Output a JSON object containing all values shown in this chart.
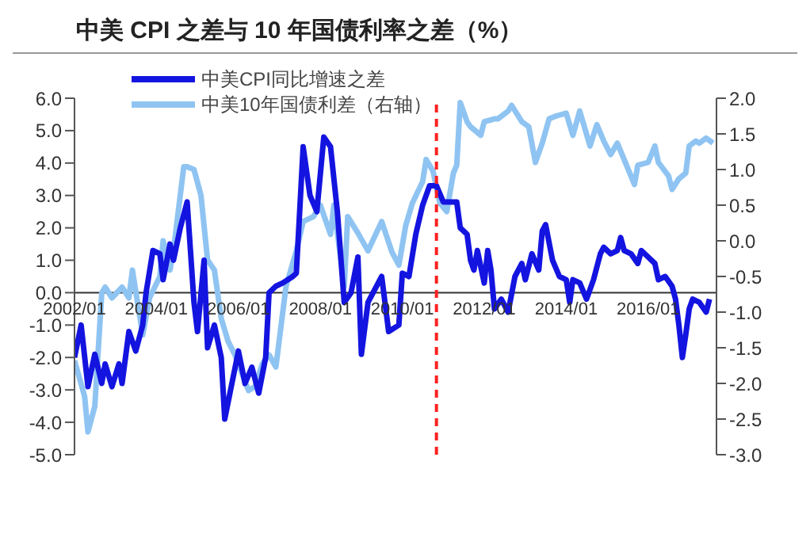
{
  "chart_data": {
    "type": "line",
    "title": "中美 CPI 之差与 10 年国债利率之差（%）",
    "legend": "top left",
    "xlim": [
      "2002-01",
      "2017-09"
    ],
    "xticks": [
      {
        "value": "2002-01",
        "label": "2002/01"
      },
      {
        "value": "2004-01",
        "label": "2004/01"
      },
      {
        "value": "2006-01",
        "label": "2006/01"
      },
      {
        "value": "2008-01",
        "label": "2008/01"
      },
      {
        "value": "2010-01",
        "label": "2010/01"
      },
      {
        "value": "2012-01",
        "label": "2012/01"
      },
      {
        "value": "2014-01",
        "label": "2014/01"
      },
      {
        "value": "2016-01",
        "label": "2016/01"
      }
    ],
    "ylim": [
      -5,
      6
    ],
    "yticks": [
      {
        "value": -5,
        "label": "-5.0"
      },
      {
        "value": -4,
        "label": "-4.0"
      },
      {
        "value": -3,
        "label": "-3.0"
      },
      {
        "value": -2,
        "label": "-2.0"
      },
      {
        "value": -1,
        "label": "-1.0"
      },
      {
        "value": 0,
        "label": "0.0"
      },
      {
        "value": 1,
        "label": "1.0"
      },
      {
        "value": 2,
        "label": "2.0"
      },
      {
        "value": 3,
        "label": "3.0"
      },
      {
        "value": 4,
        "label": "4.0"
      },
      {
        "value": 5,
        "label": "5.0"
      },
      {
        "value": 6,
        "label": "6.0"
      }
    ],
    "y2lim": [
      -3,
      2
    ],
    "y2ticks": [
      {
        "value": -3,
        "label": "-3.0"
      },
      {
        "value": -2.5,
        "label": "-2.5"
      },
      {
        "value": -2,
        "label": "-2.0"
      },
      {
        "value": -1.5,
        "label": "-1.5"
      },
      {
        "value": -1,
        "label": "-1.0"
      },
      {
        "value": -0.5,
        "label": "-0.5"
      },
      {
        "value": 0,
        "label": "0.0"
      },
      {
        "value": 0.5,
        "label": "0.5"
      },
      {
        "value": 1,
        "label": "1.0"
      },
      {
        "value": 1.5,
        "label": "1.5"
      },
      {
        "value": 2,
        "label": "2.0"
      }
    ],
    "ref_lines": [
      {
        "axis": "x",
        "value": "2010-11",
        "color": "#ff2020",
        "line_style": "dashed"
      }
    ],
    "series": [
      {
        "name": "中美CPI同比增速之差",
        "color": "#1414e0",
        "x": [
          "2002-01",
          "2002-03",
          "2002-05",
          "2002-07",
          "2002-09",
          "2002-10",
          "2002-12",
          "2003-02",
          "2003-03",
          "2003-05",
          "2003-07",
          "2003-09",
          "2003-10",
          "2003-12",
          "2004-02",
          "2004-03",
          "2004-05",
          "2004-06",
          "2004-08",
          "2004-10",
          "2004-12",
          "2005-01",
          "2005-03",
          "2005-04",
          "2005-06",
          "2005-08",
          "2005-09",
          "2006-01",
          "2006-03",
          "2006-05",
          "2006-07",
          "2006-09",
          "2006-10",
          "2006-12",
          "2007-02",
          "2007-05",
          "2007-06",
          "2007-07",
          "2007-08",
          "2007-10",
          "2007-12",
          "2008-02",
          "2008-04",
          "2008-06",
          "2008-08",
          "2008-10",
          "2008-12",
          "2009-01",
          "2009-03",
          "2009-07",
          "2009-09",
          "2009-12",
          "2010-01",
          "2010-03",
          "2010-05",
          "2010-07",
          "2010-09",
          "2010-11",
          "2011-01",
          "2011-03",
          "2011-05",
          "2011-06",
          "2011-08",
          "2011-09",
          "2011-10",
          "2011-11",
          "2012-01",
          "2012-02",
          "2012-03",
          "2012-04",
          "2012-06",
          "2012-08",
          "2012-10",
          "2012-12",
          "2013-01",
          "2013-03",
          "2013-05",
          "2013-06",
          "2013-07",
          "2013-09",
          "2013-11",
          "2014-01",
          "2014-02",
          "2014-03",
          "2014-05",
          "2014-07",
          "2014-09",
          "2014-11",
          "2014-12",
          "2015-02",
          "2015-04",
          "2015-05",
          "2015-06",
          "2015-08",
          "2015-10",
          "2015-11",
          "2016-01",
          "2016-03",
          "2016-04",
          "2016-06",
          "2016-08",
          "2016-09",
          "2016-10",
          "2016-11",
          "2016-12",
          "2017-01",
          "2017-02",
          "2017-04",
          "2017-06",
          "2017-07"
        ],
        "values": [
          -2.0,
          -1.0,
          -2.9,
          -1.9,
          -2.8,
          -2.2,
          -2.9,
          -2.2,
          -2.8,
          -1.2,
          -1.8,
          -1.0,
          0.0,
          1.3,
          1.2,
          0.4,
          1.5,
          1.0,
          2.0,
          2.8,
          -0.3,
          -1.2,
          1.0,
          -1.7,
          -1.0,
          -2.0,
          -3.9,
          -1.8,
          -2.8,
          -2.3,
          -3.1,
          -2.0,
          0.0,
          0.2,
          0.3,
          0.5,
          0.6,
          2.5,
          4.5,
          3.0,
          2.5,
          4.8,
          4.5,
          2.5,
          -0.3,
          0.0,
          1.1,
          -1.9,
          -0.3,
          0.5,
          -1.2,
          -1.0,
          0.6,
          0.5,
          1.8,
          2.7,
          3.3,
          3.3,
          2.8,
          2.8,
          2.8,
          2.0,
          1.8,
          1.0,
          0.7,
          1.3,
          0.3,
          1.3,
          0.7,
          -0.5,
          -0.2,
          -0.6,
          0.5,
          0.9,
          0.4,
          1.2,
          0.7,
          1.9,
          2.1,
          1.0,
          0.5,
          0.4,
          -0.3,
          0.4,
          0.3,
          -0.2,
          0.4,
          1.2,
          1.4,
          1.2,
          1.3,
          1.7,
          1.3,
          1.2,
          0.9,
          1.3,
          1.1,
          0.9,
          0.4,
          0.5,
          0.2,
          -0.2,
          -1.0,
          -2.0,
          -1.3,
          -0.5,
          -0.2,
          -0.3,
          -0.6,
          -0.2
        ]
      },
      {
        "name": "中美10年国债利差（右轴）",
        "color": "#8fc4f2",
        "axis": "y2",
        "x": [
          "2002-01",
          "2002-04",
          "2002-05",
          "2002-07",
          "2002-09",
          "2002-10",
          "2002-12",
          "2003-03",
          "2003-05",
          "2003-06",
          "2003-09",
          "2003-11",
          "2004-02",
          "2004-03",
          "2004-05",
          "2004-06",
          "2004-09",
          "2004-10",
          "2004-12",
          "2005-02",
          "2005-04",
          "2005-06",
          "2005-08",
          "2005-10",
          "2005-12",
          "2006-04",
          "2006-06",
          "2006-08",
          "2006-10",
          "2006-12",
          "2007-03",
          "2007-06",
          "2007-08",
          "2007-11",
          "2008-01",
          "2008-04",
          "2008-05",
          "2008-08",
          "2008-09",
          "2008-12",
          "2009-03",
          "2009-07",
          "2009-10",
          "2009-12",
          "2010-02",
          "2010-04",
          "2010-07",
          "2010-08",
          "2010-10",
          "2010-12",
          "2011-02",
          "2011-04",
          "2011-05",
          "2011-06",
          "2011-08",
          "2011-09",
          "2011-12",
          "2012-01",
          "2012-04",
          "2012-05",
          "2012-08",
          "2012-09",
          "2012-12",
          "2013-02",
          "2013-04",
          "2013-06",
          "2013-08",
          "2013-10",
          "2014-01",
          "2014-03",
          "2014-05",
          "2014-08",
          "2014-10",
          "2014-12",
          "2015-02",
          "2015-04",
          "2015-06",
          "2015-09",
          "2015-10",
          "2016-01",
          "2016-03",
          "2016-04",
          "2016-07",
          "2016-08",
          "2016-10",
          "2016-12",
          "2017-01",
          "2017-03",
          "2017-04",
          "2017-06",
          "2017-08"
        ],
        "values": [
          -1.68,
          -2.18,
          -2.68,
          -2.32,
          -0.73,
          -0.65,
          -0.8,
          -0.65,
          -0.8,
          -0.41,
          -1.32,
          -0.8,
          -0.5,
          0.0,
          -0.41,
          -0.14,
          1.04,
          1.04,
          1.0,
          0.64,
          -0.27,
          -0.41,
          -1.09,
          -1.41,
          -1.6,
          -2.1,
          -2.04,
          -1.73,
          -1.6,
          -1.77,
          -0.64,
          -0.14,
          0.27,
          0.34,
          0.5,
          0.09,
          0.5,
          -0.64,
          0.34,
          0.11,
          -0.14,
          0.27,
          -0.16,
          -0.34,
          0.22,
          0.53,
          0.83,
          1.14,
          0.98,
          0.53,
          0.41,
          0.95,
          1.06,
          1.94,
          1.67,
          1.6,
          1.48,
          1.67,
          1.71,
          1.71,
          1.82,
          1.9,
          1.67,
          1.6,
          1.1,
          1.37,
          1.71,
          1.75,
          1.79,
          1.48,
          1.82,
          1.33,
          1.63,
          1.4,
          1.21,
          1.37,
          1.14,
          0.79,
          1.06,
          1.1,
          1.33,
          1.1,
          0.91,
          0.72,
          0.87,
          0.95,
          1.33,
          1.4,
          1.37,
          1.44,
          1.37
        ]
      }
    ]
  }
}
